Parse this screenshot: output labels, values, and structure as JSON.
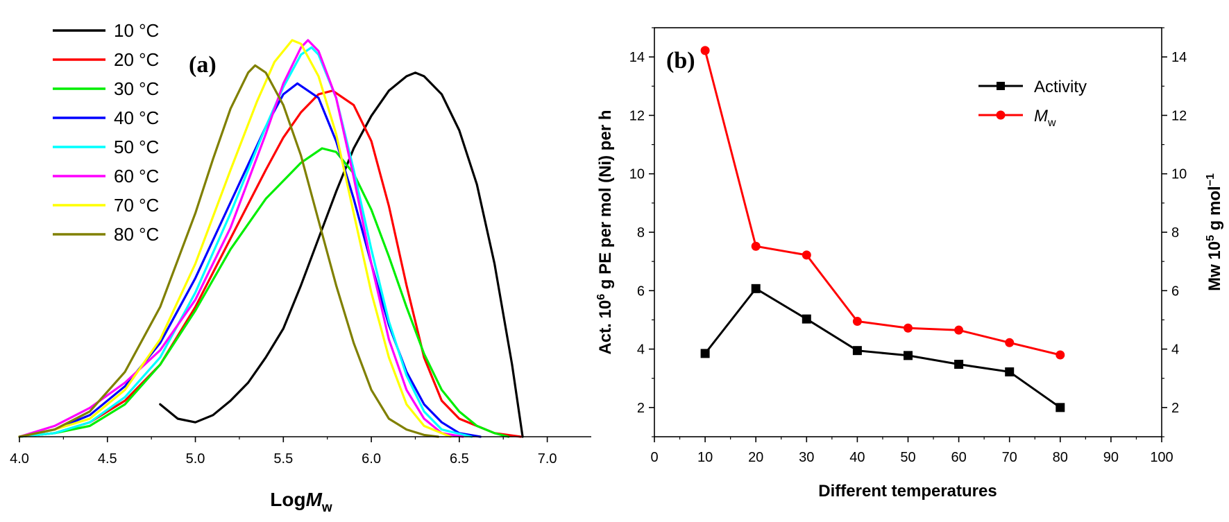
{
  "chart_data": [
    {
      "panel": "(a)",
      "type": "line",
      "xlabel_main": "Log",
      "xlabel_italic": "M",
      "xlabel_sub": "w",
      "xlim": [
        4.0,
        7.25
      ],
      "xticks": [
        "4.0",
        "4.5",
        "5.0",
        "5.5",
        "6.0",
        "6.5",
        "7.0"
      ],
      "y_axis_shown": false,
      "legend_position": "top-left",
      "series": [
        {
          "name": "10 °C",
          "color": "#000000",
          "x": [
            4.8,
            4.9,
            5.0,
            5.1,
            5.2,
            5.3,
            5.4,
            5.5,
            5.6,
            5.7,
            5.8,
            5.9,
            6.0,
            6.1,
            6.2,
            6.25,
            6.3,
            6.4,
            6.5,
            6.6,
            6.7,
            6.8,
            6.86
          ],
          "y": [
            0.09,
            0.05,
            0.04,
            0.06,
            0.1,
            0.15,
            0.22,
            0.3,
            0.42,
            0.55,
            0.68,
            0.8,
            0.89,
            0.96,
            1.0,
            1.01,
            1.0,
            0.95,
            0.85,
            0.7,
            0.48,
            0.2,
            0.0
          ]
        },
        {
          "name": "20 °C",
          "color": "#ff0000",
          "x": [
            4.0,
            4.2,
            4.4,
            4.6,
            4.8,
            5.0,
            5.2,
            5.4,
            5.5,
            5.6,
            5.7,
            5.78,
            5.9,
            6.0,
            6.1,
            6.2,
            6.3,
            6.4,
            6.5,
            6.6,
            6.7,
            6.85
          ],
          "y": [
            0.0,
            0.01,
            0.04,
            0.1,
            0.2,
            0.36,
            0.55,
            0.74,
            0.83,
            0.9,
            0.95,
            0.96,
            0.92,
            0.82,
            0.64,
            0.42,
            0.22,
            0.1,
            0.05,
            0.03,
            0.01,
            0.0
          ]
        },
        {
          "name": "30 °C",
          "color": "#00ee00",
          "x": [
            4.0,
            4.2,
            4.4,
            4.6,
            4.8,
            5.0,
            5.2,
            5.4,
            5.6,
            5.72,
            5.8,
            5.9,
            6.0,
            6.1,
            6.2,
            6.3,
            6.4,
            6.5,
            6.6,
            6.7,
            6.78
          ],
          "y": [
            0.0,
            0.01,
            0.03,
            0.09,
            0.2,
            0.35,
            0.52,
            0.66,
            0.76,
            0.8,
            0.79,
            0.73,
            0.63,
            0.5,
            0.36,
            0.23,
            0.13,
            0.07,
            0.03,
            0.01,
            0.0
          ]
        },
        {
          "name": "40 °C",
          "color": "#0000ff",
          "x": [
            4.0,
            4.2,
            4.4,
            4.6,
            4.8,
            5.0,
            5.2,
            5.4,
            5.5,
            5.58,
            5.7,
            5.8,
            5.9,
            6.0,
            6.1,
            6.2,
            6.3,
            6.4,
            6.5,
            6.62
          ],
          "y": [
            0.0,
            0.02,
            0.06,
            0.14,
            0.26,
            0.44,
            0.65,
            0.86,
            0.95,
            0.98,
            0.94,
            0.82,
            0.66,
            0.48,
            0.31,
            0.18,
            0.09,
            0.04,
            0.01,
            0.0
          ]
        },
        {
          "name": "50 °C",
          "color": "#00ffff",
          "x": [
            4.0,
            4.2,
            4.4,
            4.6,
            4.8,
            5.0,
            5.2,
            5.4,
            5.5,
            5.6,
            5.66,
            5.7,
            5.8,
            5.9,
            6.0,
            6.1,
            6.2,
            6.3,
            6.4,
            6.57
          ],
          "y": [
            0.0,
            0.01,
            0.04,
            0.11,
            0.22,
            0.4,
            0.62,
            0.86,
            0.97,
            1.06,
            1.08,
            1.06,
            0.94,
            0.74,
            0.52,
            0.32,
            0.17,
            0.07,
            0.02,
            0.0
          ]
        },
        {
          "name": "60 °C",
          "color": "#ff00ff",
          "x": [
            4.0,
            4.2,
            4.4,
            4.6,
            4.8,
            5.0,
            5.2,
            5.4,
            5.5,
            5.6,
            5.64,
            5.7,
            5.8,
            5.9,
            6.0,
            6.1,
            6.2,
            6.3,
            6.4,
            6.52
          ],
          "y": [
            0.0,
            0.03,
            0.08,
            0.15,
            0.24,
            0.38,
            0.58,
            0.84,
            0.98,
            1.08,
            1.1,
            1.07,
            0.94,
            0.72,
            0.48,
            0.27,
            0.13,
            0.05,
            0.01,
            0.0
          ]
        },
        {
          "name": "70 °C",
          "color": "#ffff00",
          "x": [
            4.0,
            4.2,
            4.4,
            4.6,
            4.8,
            5.0,
            5.2,
            5.35,
            5.45,
            5.55,
            5.6,
            5.7,
            5.8,
            5.9,
            6.0,
            6.1,
            6.2,
            6.3,
            6.45
          ],
          "y": [
            0.0,
            0.02,
            0.05,
            0.13,
            0.27,
            0.48,
            0.74,
            0.93,
            1.04,
            1.1,
            1.09,
            1.0,
            0.84,
            0.62,
            0.4,
            0.22,
            0.09,
            0.03,
            0.0
          ]
        },
        {
          "name": "80 °C",
          "color": "#808000",
          "x": [
            4.0,
            4.2,
            4.4,
            4.6,
            4.8,
            5.0,
            5.1,
            5.2,
            5.3,
            5.34,
            5.4,
            5.5,
            5.6,
            5.7,
            5.8,
            5.9,
            6.0,
            6.1,
            6.2,
            6.3,
            6.38
          ],
          "y": [
            0.0,
            0.02,
            0.07,
            0.18,
            0.36,
            0.62,
            0.77,
            0.91,
            1.01,
            1.03,
            1.01,
            0.92,
            0.78,
            0.6,
            0.42,
            0.26,
            0.13,
            0.05,
            0.02,
            0.005,
            0.0
          ]
        }
      ]
    },
    {
      "panel": "(b)",
      "type": "line",
      "xlabel": "Different temperatures",
      "ylabel_left_prefix": "Act. 10",
      "ylabel_left_sup": "6",
      "ylabel_left_suffix": " g PE per mol (Ni) per h",
      "ylabel_right_prefix": "Mw 10",
      "ylabel_right_sup": "5",
      "ylabel_right_mid": " g mol",
      "ylabel_right_sup2": "−1",
      "xlim": [
        0,
        100
      ],
      "ylim": [
        1,
        15
      ],
      "xticks": [
        "0",
        "10",
        "20",
        "30",
        "40",
        "50",
        "60",
        "70",
        "80",
        "90",
        "100"
      ],
      "yticks": [
        "2",
        "4",
        "6",
        "8",
        "10",
        "12",
        "14"
      ],
      "legend_position": "top-right",
      "x": [
        10,
        20,
        30,
        40,
        50,
        60,
        70,
        80
      ],
      "series": [
        {
          "name": "Activity",
          "color": "#000000",
          "marker": "square",
          "values": [
            3.85,
            6.07,
            5.03,
            3.95,
            3.78,
            3.48,
            3.22,
            2.0
          ]
        },
        {
          "name_italic": "M",
          "name_sub": "w",
          "color": "#ff0000",
          "marker": "circle",
          "values": [
            14.22,
            7.52,
            7.22,
            4.95,
            4.72,
            4.65,
            4.22,
            3.8
          ]
        }
      ]
    }
  ]
}
